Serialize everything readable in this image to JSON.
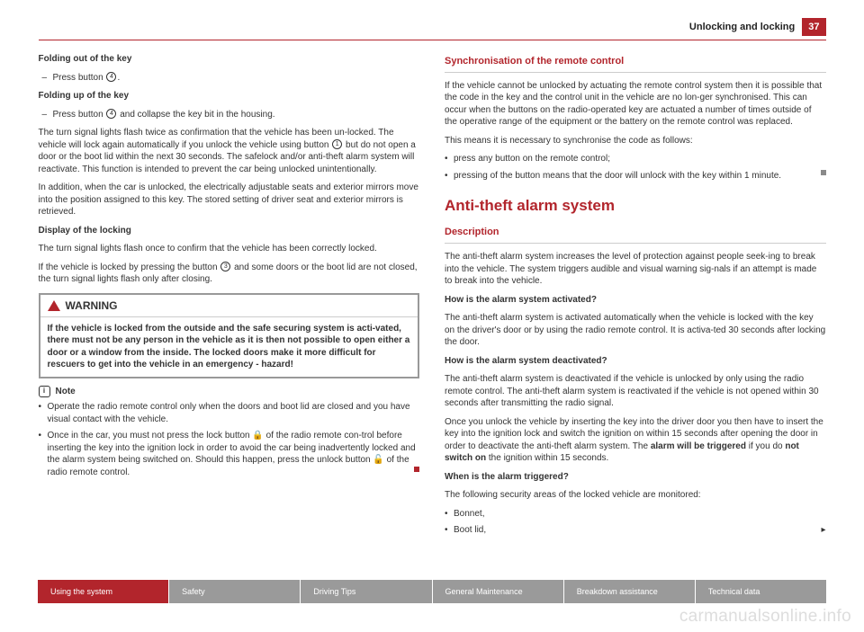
{
  "header": {
    "title": "Unlocking and locking",
    "page": "37"
  },
  "left": {
    "h_fold_out": "Folding out of the key",
    "fold_out_step": "Press button",
    "circ_4": "4",
    "h_fold_up": "Folding up of the key",
    "fold_up_step": "Press button",
    "fold_up_step_cont": " and collapse the key bit in the housing.",
    "para1a": "The turn signal lights flash twice as confirmation that the vehicle has been un-locked. The vehicle will lock again automatically if you unlock the vehicle using button ",
    "circ_1": "1",
    "para1b": " but do not open a door or the boot lid within the next 30 seconds. The safelock and/or anti-theft alarm system will reactivate. This function is intended to prevent the car being unlocked unintentionally.",
    "para2": "In addition, when the car is unlocked, the electrically adjustable seats and exterior mirrors move into the position assigned to this key. The stored setting of driver seat and exterior mirrors is retrieved.",
    "h_display": "Display of the locking",
    "para3": "The turn signal lights flash once to confirm that the vehicle has been correctly locked.",
    "para4a": "If the vehicle is locked by pressing the button ",
    "circ_3": "3",
    "para4b": " and some doors or the boot lid are not closed, the turn signal lights flash only after closing.",
    "warn_label": "WARNING",
    "warn_body": "If the vehicle is locked from the outside and the safe securing system is acti-vated, there must not be any person in the vehicle as it is then not possible to open either a door or a window from the inside. The locked doors make it more difficult for rescuers to get into the vehicle in an emergency - hazard!",
    "note_label": "Note",
    "note_b1": "Operate the radio remote control only when the doors and boot lid are closed and you have visual contact with the vehicle.",
    "note_b2a": "Once in the car, you must not press the lock button ",
    "lock_glyph": "🔒",
    "note_b2b": " of the radio remote con-trol before inserting the key into the ignition lock in order to avoid the car being inadvertently locked and the alarm system being switched on. Should this happen, press the unlock button ",
    "unlock_glyph": "🔓",
    "note_b2c": " of the radio remote control."
  },
  "right": {
    "h_sync": "Synchronisation of the remote control",
    "sync_p1": "If the vehicle cannot be unlocked by actuating the remote control system then it is possible that the code in the key and the control unit in the vehicle are no lon-ger synchronised. This can occur when the buttons on the radio-operated key are actuated a number of times outside of the operative range of the equipment or the battery on the remote control was replaced.",
    "sync_p2": "This means it is necessary to synchronise the code as follows:",
    "sync_b1": "press any button on the remote control;",
    "sync_b2": "pressing of the button means that the door will unlock with the key within 1 minute.",
    "h_anti": "Anti-theft alarm system",
    "h_desc": "Description",
    "desc_p1": "The anti-theft alarm system increases the level of protection against people seek-ing to break into the vehicle. The system triggers audible and visual warning sig-nals if an attempt is made to break into the vehicle.",
    "q1": "How is the alarm system activated?",
    "a1": "The anti-theft alarm system is activated automatically when the vehicle is locked with the key on the driver's door or by using the radio remote control. It is activa-ted 30 seconds after locking the door.",
    "q2": "How is the alarm system deactivated?",
    "a2": "The anti-theft alarm system is deactivated if the vehicle is unlocked by only using the radio remote control. The anti-theft alarm system is reactivated if the vehicle is not opened within 30 seconds after transmitting the radio signal.",
    "a2b_pre": "Once you unlock the vehicle by inserting the key into the driver door you then have to insert the key into the ignition lock and switch the ignition on within 15 seconds after opening the door in order to deactivate the anti-theft alarm system. The ",
    "a2b_bold1": "alarm will be triggered",
    "a2b_mid": " if you do ",
    "a2b_bold2": "not switch on",
    "a2b_end": " the ignition within 15 seconds.",
    "q3": "When is the alarm triggered?",
    "a3": "The following security areas of the locked vehicle are monitored:",
    "item1": "Bonnet,",
    "item2": "Boot lid,"
  },
  "tabs": [
    "Using the system",
    "Safety",
    "Driving Tips",
    "General Maintenance",
    "Breakdown assistance",
    "Technical data"
  ],
  "watermark": "carmanualsonline.info"
}
